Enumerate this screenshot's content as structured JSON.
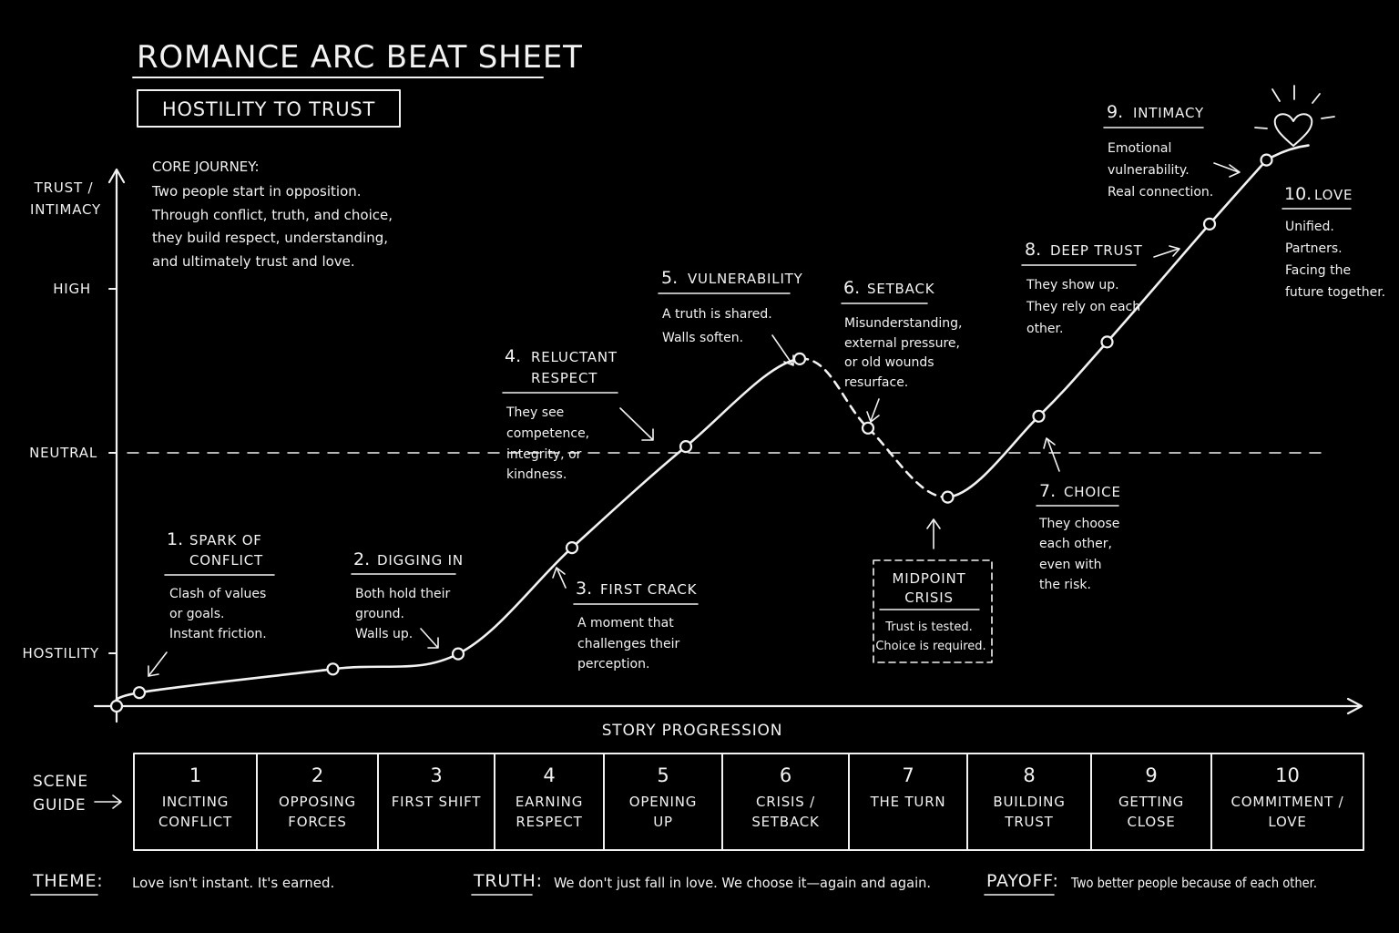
{
  "title": "Romance Arc Beat Sheet",
  "subtitle": "Hostility to Trust",
  "core_journey": {
    "heading": "CORE JOURNEY:",
    "lines": [
      "Two people start in opposition.",
      "Through conflict, truth, and choice,",
      "they build respect, understanding,",
      "and ultimately trust and love."
    ]
  },
  "y_axis": {
    "label_lines": [
      "TRUST /",
      "INTIMACY"
    ],
    "levels": [
      {
        "label": "HIGH",
        "value": 3
      },
      {
        "label": "NEUTRAL",
        "value": 2
      },
      {
        "label": "HOSTILITY",
        "value": 1
      }
    ]
  },
  "x_axis": {
    "label": "STORY PROGRESSION"
  },
  "chart_data": {
    "type": "line",
    "ylabel": "TRUST / INTIMACY",
    "xlabel": "STORY PROGRESSION",
    "ylim": [
      0,
      3.45
    ],
    "xlim": [
      0,
      10.3
    ],
    "reference_line": {
      "label": "NEUTRAL",
      "value": 2
    },
    "points": [
      {
        "x": 0.0,
        "y": 0.0
      },
      {
        "x": 0.2,
        "y": 0.08,
        "beat": 1
      },
      {
        "x": 1.9,
        "y": 0.22,
        "beat": 2
      },
      {
        "x": 3.0,
        "y": 0.31
      },
      {
        "x": 4.0,
        "y": 0.94
      },
      {
        "x": 5.0,
        "y": 1.54
      },
      {
        "x": 6.0,
        "y": 2.06,
        "beat": 5
      },
      {
        "x": 6.6,
        "y": 1.65,
        "beat": 6
      },
      {
        "x": 7.3,
        "y": 1.24,
        "beat": "midpoint"
      },
      {
        "x": 8.1,
        "y": 1.72,
        "beat": 7
      },
      {
        "x": 8.7,
        "y": 2.16
      },
      {
        "x": 9.6,
        "y": 2.86,
        "beat": 8
      },
      {
        "x": 10.1,
        "y": 3.24,
        "beat": 9
      }
    ],
    "dashed_segment_x": [
      6.0,
      7.3
    ]
  },
  "beats": [
    {
      "number": "1.",
      "title_lines": [
        "SPARK OF",
        "CONFLICT"
      ],
      "desc": [
        "Clash of values",
        "or goals.",
        "Instant friction."
      ]
    },
    {
      "number": "2.",
      "title_lines": [
        "DIGGING IN"
      ],
      "desc": [
        "Both hold their",
        "ground.",
        "Walls up."
      ]
    },
    {
      "number": "3.",
      "title_lines": [
        "FIRST CRACK"
      ],
      "desc": [
        "A moment that",
        "challenges their",
        "perception."
      ]
    },
    {
      "number": "4.",
      "title_lines": [
        "RELUCTANT",
        "RESPECT"
      ],
      "desc": [
        "They see",
        "competence,",
        "integrity, or",
        "kindness."
      ]
    },
    {
      "number": "5.",
      "title_lines": [
        "VULNERABILITY"
      ],
      "desc": [
        "A truth is shared.",
        "Walls soften."
      ]
    },
    {
      "number": "6.",
      "title_lines": [
        "SETBACK"
      ],
      "desc": [
        "Misunderstanding,",
        "external pressure,",
        "or old wounds",
        "resurface."
      ]
    },
    {
      "number": "7.",
      "title_lines": [
        "CHOICE"
      ],
      "desc": [
        "They choose",
        "each other,",
        "even with",
        "the risk."
      ]
    },
    {
      "number": "8.",
      "title_lines": [
        "DEEP TRUST"
      ],
      "desc": [
        "They show up.",
        "They rely on each",
        "other."
      ]
    },
    {
      "number": "9.",
      "title_lines": [
        "INTIMACY"
      ],
      "desc": [
        "Emotional",
        "vulnerability.",
        "Real connection."
      ]
    },
    {
      "number": "10.",
      "title_lines": [
        "LOVE"
      ],
      "desc": [
        "Unified.",
        "Partners.",
        "Facing the",
        "future together."
      ]
    }
  ],
  "midpoint": {
    "title_lines": [
      "MIDPOINT",
      "CRISIS"
    ],
    "desc": [
      "Trust is tested.",
      "Choice is required."
    ]
  },
  "scene_guide": {
    "label_lines": [
      "SCENE",
      "GUIDE"
    ],
    "cells": [
      {
        "num": "1",
        "lines": [
          "INCITING",
          "CONFLICT"
        ]
      },
      {
        "num": "2",
        "lines": [
          "OPPOSING",
          "FORCES"
        ]
      },
      {
        "num": "3",
        "lines": [
          "FIRST SHIFT"
        ]
      },
      {
        "num": "4",
        "lines": [
          "EARNING",
          "RESPECT"
        ]
      },
      {
        "num": "5",
        "lines": [
          "OPENING",
          "UP"
        ]
      },
      {
        "num": "6",
        "lines": [
          "CRISIS /",
          "SETBACK"
        ]
      },
      {
        "num": "7",
        "lines": [
          "THE TURN"
        ]
      },
      {
        "num": "8",
        "lines": [
          "BUILDING",
          "TRUST"
        ]
      },
      {
        "num": "9",
        "lines": [
          "GETTING",
          "CLOSE"
        ]
      },
      {
        "num": "10",
        "lines": [
          "COMMITMENT /",
          "LOVE"
        ]
      }
    ]
  },
  "footer": {
    "theme_label": "THEME:",
    "theme_text": "Love isn't instant. It's earned.",
    "truth_label": "TRUTH:",
    "truth_text": "We don't just fall in love. We choose it—again and again.",
    "payoff_label": "PAYOFF:",
    "payoff_text": "Two better people because of each other."
  },
  "colors": {
    "background": "#000000",
    "ink": "#f2f2f2"
  },
  "icons": {
    "peak": "heart-icon"
  }
}
